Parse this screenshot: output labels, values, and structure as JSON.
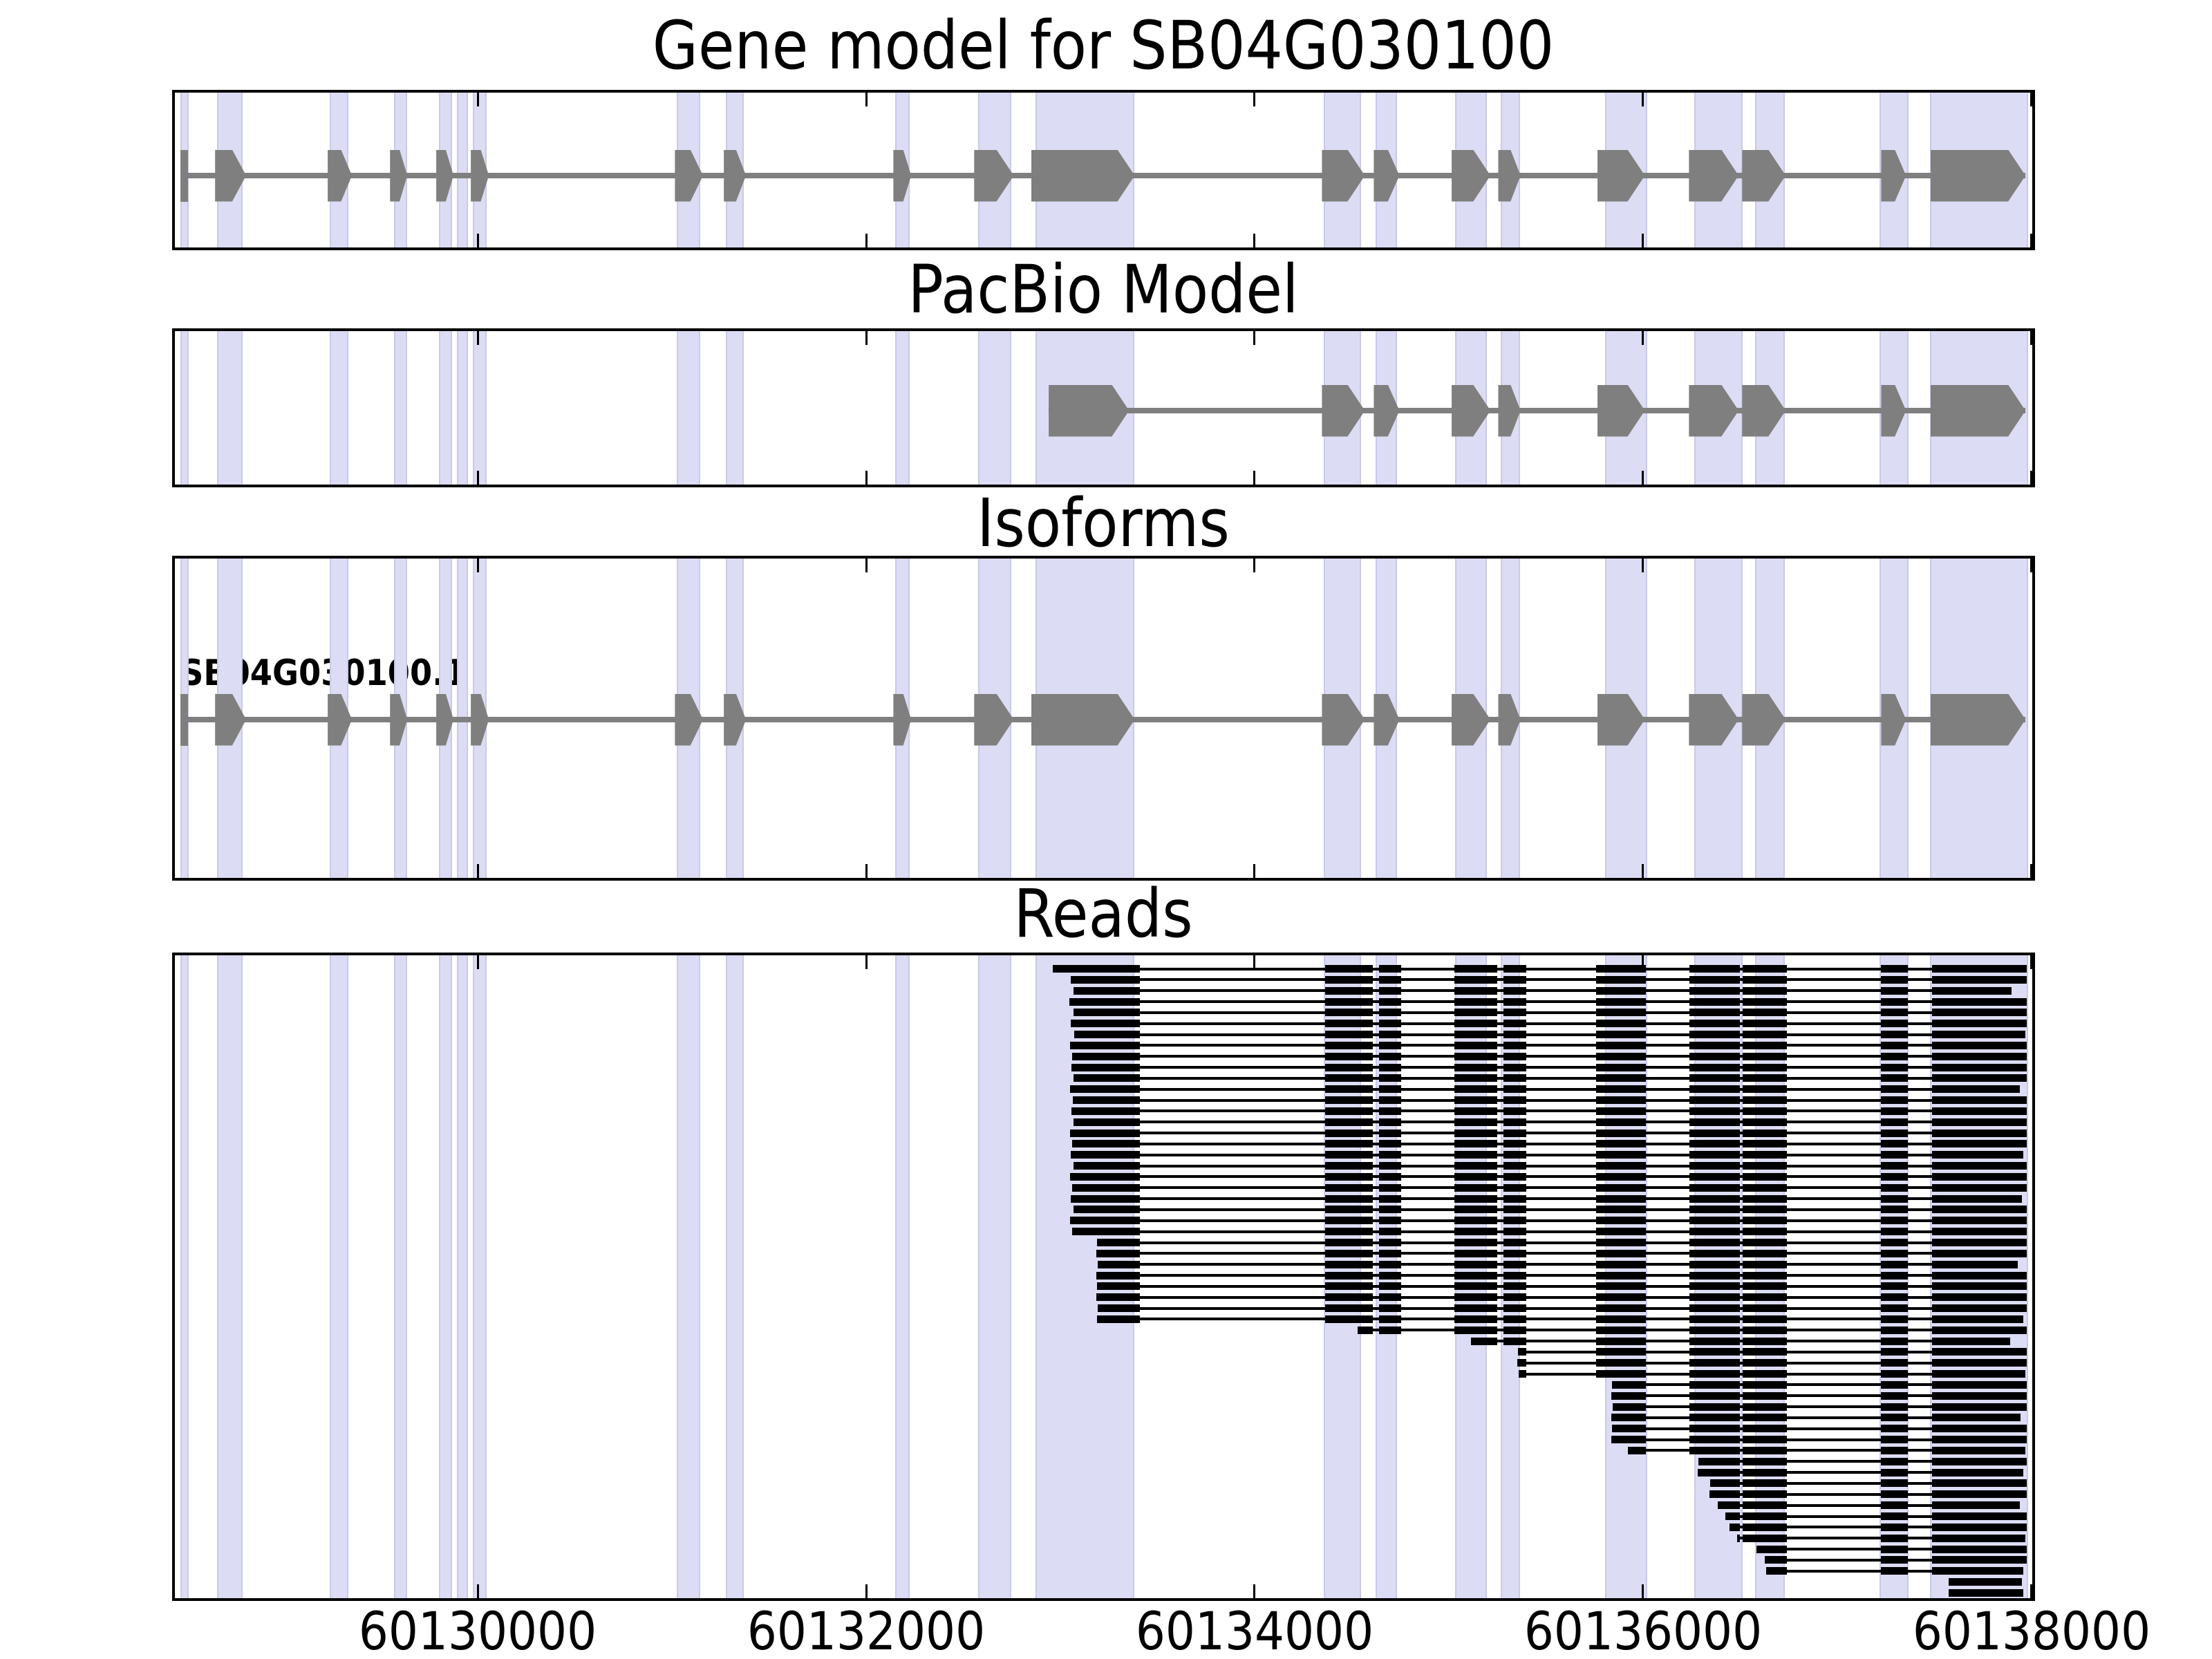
{
  "colors": {
    "background": "#ffffff",
    "panel_border": "#000000",
    "highlight_band": "#dcdcf4",
    "band_edge": "#c9c9e8",
    "exon_gray": "#7f7f7f",
    "read_black": "#000000",
    "text": "#000000"
  },
  "chart_data": {
    "type": "other",
    "subtype": "genome-browser-annotation-tracks",
    "x_axis": {
      "domain": [
        60128440,
        60138005
      ],
      "ticks": [
        60130000,
        60132000,
        60134000,
        60136000,
        60138000
      ],
      "tick_labels": [
        "60130000",
        "60132000",
        "60134000",
        "60136000",
        "60138000"
      ]
    },
    "highlight_bands": [
      [
        60128476,
        60128504
      ],
      [
        60128665,
        60128783
      ],
      [
        60129245,
        60129327
      ],
      [
        60129576,
        60129630
      ],
      [
        60129808,
        60129861
      ],
      [
        60129900,
        60129943
      ],
      [
        60129982,
        60130039
      ],
      [
        60131032,
        60131139
      ],
      [
        60131285,
        60131363
      ],
      [
        60132157,
        60132218
      ],
      [
        60132585,
        60132740
      ],
      [
        60132880,
        60133375
      ],
      [
        60134365,
        60134543
      ],
      [
        60134632,
        60134728
      ],
      [
        60135038,
        60135191
      ],
      [
        60135273,
        60135360
      ],
      [
        60135813,
        60136016
      ],
      [
        60136272,
        60136507
      ],
      [
        60136586,
        60136724
      ],
      [
        60137227,
        60137362
      ],
      [
        60137487,
        60137975
      ]
    ],
    "tracks": [
      {
        "id": "gene_model",
        "title": "Gene model for SB04G030100",
        "line": [
          60128469,
          60137970
        ],
        "exons": [
          {
            "start": 60128469,
            "end": 60128508,
            "kind": "thin"
          },
          {
            "start": 60128647,
            "end": 60128807,
            "kind": "exon"
          },
          {
            "start": 60129227,
            "end": 60129352,
            "kind": "exon"
          },
          {
            "start": 60129548,
            "end": 60129637,
            "kind": "exon"
          },
          {
            "start": 60129786,
            "end": 60129875,
            "kind": "exon"
          },
          {
            "start": 60129964,
            "end": 60130057,
            "kind": "exon"
          },
          {
            "start": 60131015,
            "end": 60131160,
            "kind": "exon"
          },
          {
            "start": 60131267,
            "end": 60131381,
            "kind": "exon"
          },
          {
            "start": 60132140,
            "end": 60132232,
            "kind": "exon"
          },
          {
            "start": 60132556,
            "end": 60132760,
            "kind": "exon"
          },
          {
            "start": 60132850,
            "end": 60133383,
            "kind": "wide"
          },
          {
            "start": 60134347,
            "end": 60134568,
            "kind": "exon"
          },
          {
            "start": 60134614,
            "end": 60134746,
            "kind": "exon"
          },
          {
            "start": 60135015,
            "end": 60135215,
            "kind": "exon"
          },
          {
            "start": 60135255,
            "end": 60135370,
            "kind": "exon"
          },
          {
            "start": 60135765,
            "end": 60136010,
            "kind": "exon"
          },
          {
            "start": 60136237,
            "end": 60136493,
            "kind": "exon"
          },
          {
            "start": 60136511,
            "end": 60136735,
            "kind": "exon"
          },
          {
            "start": 60137227,
            "end": 60137355,
            "kind": "exon"
          },
          {
            "start": 60137480,
            "end": 60137970,
            "kind": "wide"
          }
        ]
      },
      {
        "id": "pacbio",
        "title": "PacBio Model",
        "line": [
          60132940,
          60137970
        ],
        "exons": [
          {
            "start": 60132940,
            "end": 60133354,
            "kind": "wide"
          },
          {
            "start": 60134347,
            "end": 60134568,
            "kind": "exon"
          },
          {
            "start": 60134614,
            "end": 60134746,
            "kind": "exon"
          },
          {
            "start": 60135015,
            "end": 60135215,
            "kind": "exon"
          },
          {
            "start": 60135255,
            "end": 60135370,
            "kind": "exon"
          },
          {
            "start": 60135765,
            "end": 60136010,
            "kind": "exon"
          },
          {
            "start": 60136237,
            "end": 60136493,
            "kind": "exon"
          },
          {
            "start": 60136511,
            "end": 60136735,
            "kind": "exon"
          },
          {
            "start": 60137227,
            "end": 60137355,
            "kind": "exon"
          },
          {
            "start": 60137480,
            "end": 60137970,
            "kind": "wide"
          }
        ]
      },
      {
        "id": "isoforms",
        "title": "Isoforms",
        "transcript_label": "SB04G030100.1",
        "line": [
          60128469,
          60137970
        ],
        "exons": [
          {
            "start": 60128469,
            "end": 60128508,
            "kind": "thin"
          },
          {
            "start": 60128647,
            "end": 60128807,
            "kind": "exon"
          },
          {
            "start": 60129227,
            "end": 60129352,
            "kind": "exon"
          },
          {
            "start": 60129548,
            "end": 60129637,
            "kind": "exon"
          },
          {
            "start": 60129786,
            "end": 60129875,
            "kind": "exon"
          },
          {
            "start": 60129964,
            "end": 60130057,
            "kind": "exon"
          },
          {
            "start": 60131015,
            "end": 60131160,
            "kind": "exon"
          },
          {
            "start": 60131267,
            "end": 60131381,
            "kind": "exon"
          },
          {
            "start": 60132140,
            "end": 60132232,
            "kind": "exon"
          },
          {
            "start": 60132556,
            "end": 60132760,
            "kind": "exon"
          },
          {
            "start": 60132850,
            "end": 60133383,
            "kind": "wide"
          },
          {
            "start": 60134347,
            "end": 60134568,
            "kind": "exon"
          },
          {
            "start": 60134614,
            "end": 60134746,
            "kind": "exon"
          },
          {
            "start": 60135015,
            "end": 60135215,
            "kind": "exon"
          },
          {
            "start": 60135255,
            "end": 60135370,
            "kind": "exon"
          },
          {
            "start": 60135765,
            "end": 60136010,
            "kind": "exon"
          },
          {
            "start": 60136237,
            "end": 60136493,
            "kind": "exon"
          },
          {
            "start": 60136511,
            "end": 60136735,
            "kind": "exon"
          },
          {
            "start": 60137227,
            "end": 60137355,
            "kind": "exon"
          },
          {
            "start": 60137480,
            "end": 60137970,
            "kind": "wide"
          }
        ]
      },
      {
        "id": "reads",
        "title": "Reads",
        "block_pattern": [
          [
            60132900,
            60133410
          ],
          [
            60134365,
            60134610
          ],
          [
            60134640,
            60134755
          ],
          [
            60135030,
            60135250
          ],
          [
            60135282,
            60135400
          ],
          [
            60135760,
            60136015
          ],
          [
            60136240,
            60136500
          ],
          [
            60136515,
            60136740
          ],
          [
            60137227,
            60137365
          ],
          [
            60137490,
            60137975
          ]
        ],
        "rows": [
          [
            60132962,
            60137975
          ],
          [
            60133052,
            60137975
          ],
          [
            60133068,
            60137900
          ],
          [
            60133048,
            60137975
          ],
          [
            60133066,
            60137975
          ],
          [
            60133055,
            60137975
          ],
          [
            60133070,
            60137968
          ],
          [
            60133050,
            60137975
          ],
          [
            60133062,
            60137975
          ],
          [
            60133056,
            60137975
          ],
          [
            60133068,
            60137975
          ],
          [
            60133050,
            60137940
          ],
          [
            60133064,
            60137975
          ],
          [
            60133056,
            60137975
          ],
          [
            60133066,
            60137975
          ],
          [
            60133050,
            60137975
          ],
          [
            60133062,
            60137975
          ],
          [
            60133055,
            60137960
          ],
          [
            60133068,
            60137975
          ],
          [
            60133050,
            60137975
          ],
          [
            60133060,
            60137975
          ],
          [
            60133055,
            60137950
          ],
          [
            60133066,
            60137975
          ],
          [
            60133050,
            60137975
          ],
          [
            60133060,
            60137975
          ],
          [
            60133190,
            60137975
          ],
          [
            60133185,
            60137975
          ],
          [
            60133192,
            60137930
          ],
          [
            60133186,
            60137975
          ],
          [
            60133190,
            60137975
          ],
          [
            60133185,
            60137975
          ],
          [
            60133192,
            60137975
          ],
          [
            60133188,
            60137960
          ],
          [
            60134532,
            60137975
          ],
          [
            60135115,
            60137890
          ],
          [
            60135357,
            60137975
          ],
          [
            60135352,
            60137975
          ],
          [
            60135360,
            60137968
          ],
          [
            60135842,
            60137975
          ],
          [
            60135836,
            60137975
          ],
          [
            60135844,
            60137975
          ],
          [
            60135838,
            60137945
          ],
          [
            60135842,
            60137975
          ],
          [
            60135836,
            60137975
          ],
          [
            60135924,
            60137968
          ],
          [
            60136287,
            60137975
          ],
          [
            60136283,
            60137960
          ],
          [
            60136347,
            60137975
          ],
          [
            60136343,
            60137975
          ],
          [
            60136386,
            60137940
          ],
          [
            60136426,
            60137975
          ],
          [
            60136447,
            60137975
          ],
          [
            60136486,
            60137968
          ],
          [
            60136586,
            60137975
          ],
          [
            60136629,
            60137975
          ],
          [
            60136633,
            60137960
          ],
          [
            60137575,
            60137950
          ],
          [
            60137575,
            60137958
          ]
        ]
      }
    ]
  }
}
